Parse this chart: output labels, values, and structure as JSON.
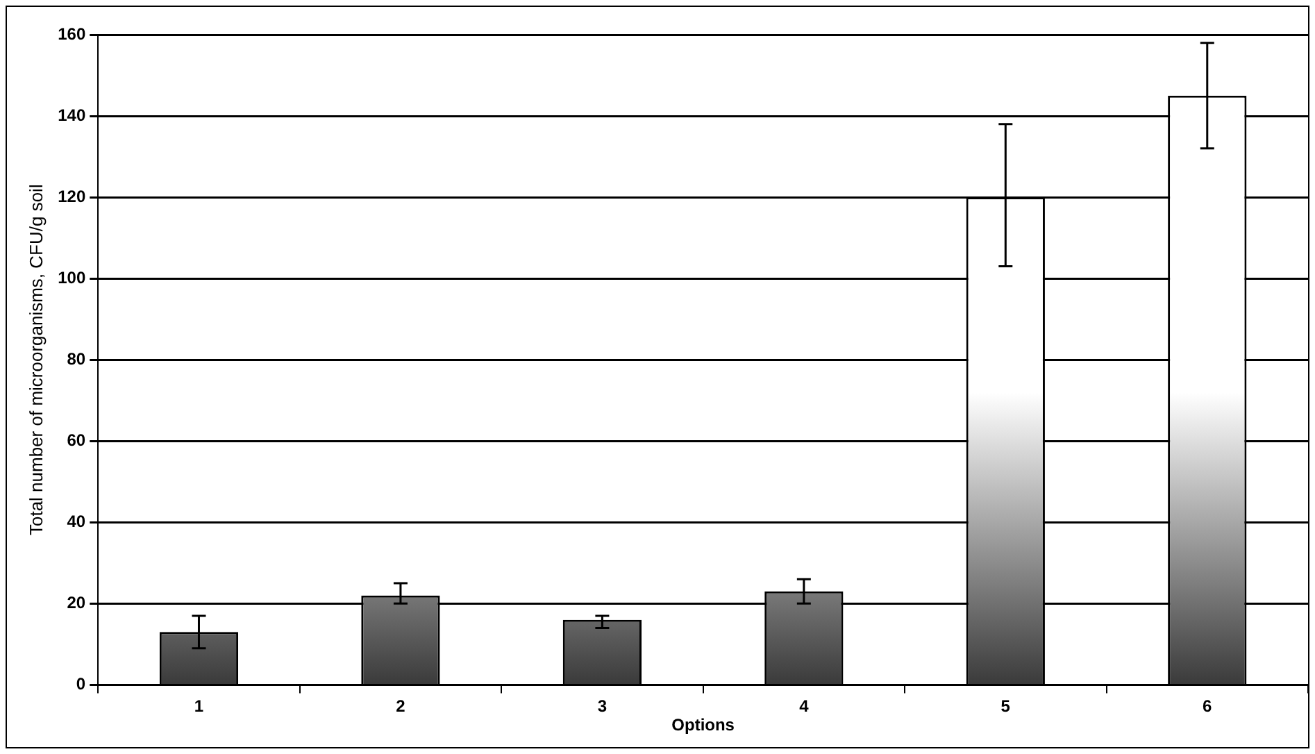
{
  "chart_data": {
    "type": "bar",
    "xlabel": "Options",
    "ylabel": "Total number of microorganisms, CFU/g soil",
    "categories": [
      "1",
      "2",
      "3",
      "4",
      "5",
      "6"
    ],
    "values": [
      13,
      22,
      16,
      23,
      120,
      145
    ],
    "errors": [
      [
        9,
        17
      ],
      [
        20,
        25
      ],
      [
        14,
        17
      ],
      [
        20,
        26
      ],
      [
        103,
        138
      ],
      [
        132,
        158
      ]
    ],
    "color": "#3a3a3a",
    "ylim": [
      0,
      160
    ],
    "yticks": [
      0,
      20,
      40,
      60,
      80,
      100,
      120,
      140,
      160
    ],
    "grid": "y",
    "legend": false
  }
}
